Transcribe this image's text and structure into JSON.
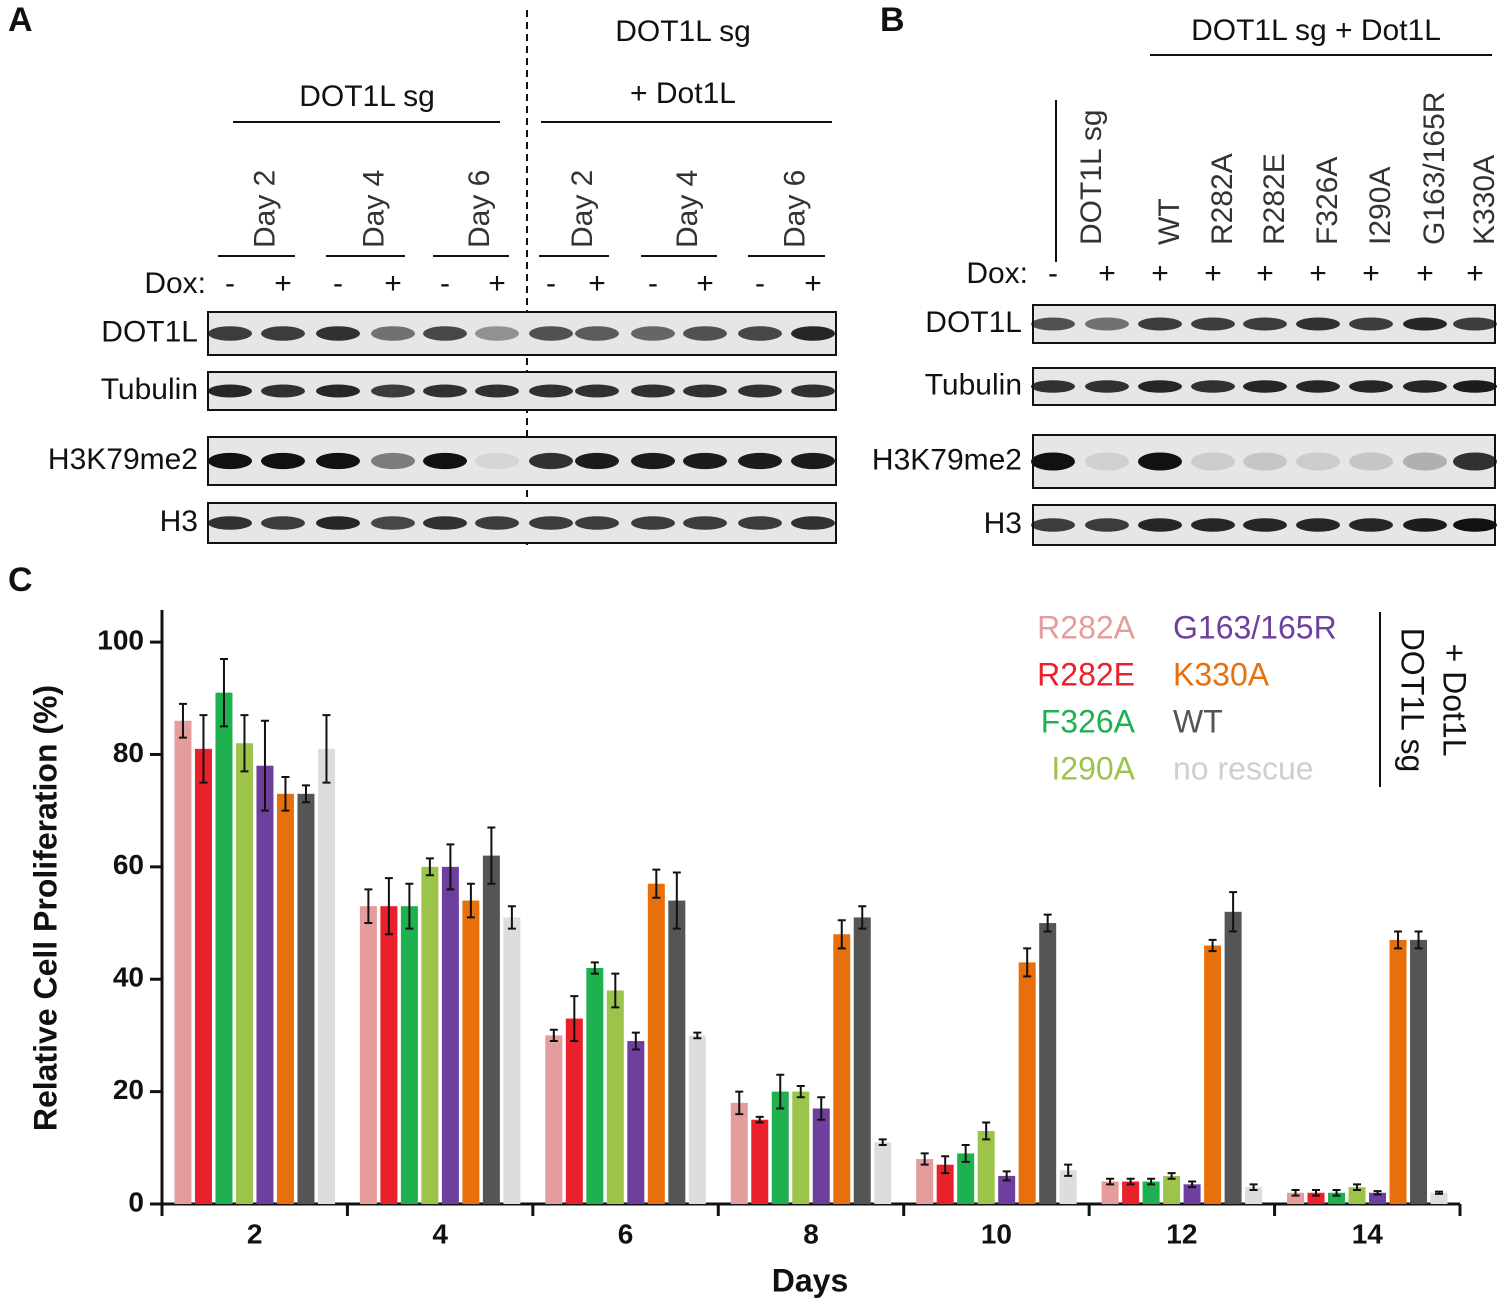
{
  "panel_a": {
    "label": "A",
    "group1": "DOT1L sg",
    "group2_line1": "DOT1L sg",
    "group2_line2": "+ Dot1L",
    "days": [
      "Day 2",
      "Day 4",
      "Day 6",
      "Day 2",
      "Day 4",
      "Day 6"
    ],
    "dox_label": "Dox:",
    "dox": [
      "-",
      "+",
      "-",
      "+",
      "-",
      "+",
      "-",
      "+",
      "-",
      "+",
      "-",
      "+"
    ],
    "blots": [
      "DOT1L",
      "Tubulin",
      "H3K79me2",
      "H3"
    ]
  },
  "panel_b": {
    "label": "B",
    "group": "DOT1L sg + Dot1L",
    "lanes": [
      "DOT1L sg",
      "WT",
      "R282A",
      "R282E",
      "F326A",
      "I290A",
      "G163/165R",
      "K330A"
    ],
    "dox_label": "Dox:",
    "dox": [
      "-",
      "+",
      "+",
      "+",
      "+",
      "+",
      "+",
      "+",
      "+"
    ],
    "blots": [
      "DOT1L",
      "Tubulin",
      "H3K79me2",
      "H3"
    ]
  },
  "chart_data": {
    "type": "bar",
    "label": "C",
    "y_label": "Relative Cell Proliferation (%)",
    "x_label": "Days",
    "categories": [
      "2",
      "4",
      "6",
      "8",
      "10",
      "12",
      "14"
    ],
    "ylim": [
      0,
      105
    ],
    "yticks": [
      0,
      20,
      40,
      60,
      80,
      100
    ],
    "legend_bracket": [
      "DOT1L sg",
      "+ Dot1L"
    ],
    "series": [
      {
        "name": "R282A",
        "color": "#e59c9c",
        "values": [
          86,
          53,
          30,
          18,
          8,
          4,
          2
        ],
        "errors": [
          3,
          3,
          1,
          2,
          1,
          0.5,
          0.5
        ]
      },
      {
        "name": "R282E",
        "color": "#e8212b",
        "values": [
          81,
          53,
          33,
          15,
          7,
          4,
          2
        ],
        "errors": [
          6,
          5,
          4,
          0.5,
          1.5,
          0.5,
          0.5
        ]
      },
      {
        "name": "F326A",
        "color": "#1fb04f",
        "values": [
          91,
          53,
          42,
          20,
          9,
          4,
          2
        ],
        "errors": [
          6,
          4,
          1,
          3,
          1.5,
          0.5,
          0.5
        ]
      },
      {
        "name": "I290A",
        "color": "#9cc44b",
        "values": [
          82,
          60,
          38,
          20,
          13,
          5,
          3
        ],
        "errors": [
          5,
          1.5,
          3,
          1,
          1.5,
          0.5,
          0.5
        ]
      },
      {
        "name": "G163/165R",
        "color": "#6f3f9e",
        "values": [
          78,
          60,
          29,
          17,
          5,
          3.5,
          2
        ],
        "errors": [
          8,
          4,
          1.5,
          2,
          0.8,
          0.5,
          0.3
        ]
      },
      {
        "name": "K330A",
        "color": "#e8700c",
        "values": [
          73,
          54,
          57,
          48,
          43,
          46,
          47
        ],
        "errors": [
          3,
          3,
          2.5,
          2.5,
          2.5,
          1,
          1.5
        ]
      },
      {
        "name": "WT",
        "color": "#555555",
        "values": [
          73,
          62,
          54,
          51,
          50,
          52,
          47
        ],
        "errors": [
          1.5,
          5,
          5,
          2,
          1.5,
          3.5,
          1.5
        ]
      },
      {
        "name": "no rescue",
        "color": "#dddddd",
        "values": [
          81,
          51,
          30,
          11,
          6,
          3,
          2
        ],
        "errors": [
          6,
          2,
          0.5,
          0.5,
          1,
          0.5,
          0.2
        ]
      }
    ]
  }
}
